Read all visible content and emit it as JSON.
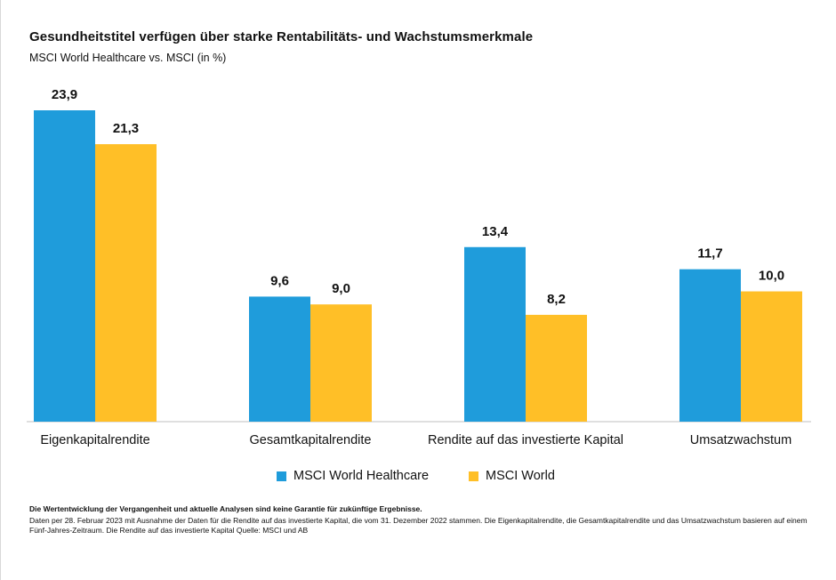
{
  "colors": {
    "healthcare": "#1f9cdb",
    "world": "#ffbf27",
    "axis": "#bfbfbf"
  },
  "title": "Gesundheitstitel verfügen über starke Rentabilitäts- und Wachstumsmerkmale",
  "subtitle": "MSCI World Healthcare vs. MSCI (in %)",
  "footnote": {
    "bold": "Die Wertentwicklung der Vergangenheit und aktuelle Analysen sind keine Garantie für zukünftige Ergebnisse.",
    "text": "Daten per 28. Februar 2023 mit Ausnahme der Daten für die Rendite auf das investierte Kapital, die vom 31. Dezember 2022 stammen. Die Eigenkapitalrendite, die Gesamtkapitalrendite und das Umsatzwachstum basieren auf einem Fünf-Jahres-Zeitraum. Die Rendite auf das investierte Kapital Quelle: MSCI und AB"
  },
  "chart_data": {
    "type": "bar",
    "title": "Gesundheitstitel verfügen über starke Rentabilitäts- und Wachstumsmerkmale",
    "subtitle": "MSCI World Healthcare vs. MSCI (in %)",
    "xlabel": "",
    "ylabel": "",
    "ylim": [
      0,
      23.9
    ],
    "grid": false,
    "legend_position": "bottom",
    "categories": [
      "Eigenkapitalrendite",
      "Gesamtkapitalrendite",
      "Rendite auf das investierte Kapital",
      "Umsatzwachstum"
    ],
    "series": [
      {
        "name": "MSCI World Healthcare",
        "values": [
          23.9,
          9.6,
          13.4,
          11.7
        ],
        "labels": [
          "23,9",
          "9,6",
          "13,4",
          "11,7"
        ]
      },
      {
        "name": "MSCI World",
        "values": [
          21.3,
          9.0,
          8.2,
          10.0
        ],
        "labels": [
          "21,3",
          "9,0",
          "8,2",
          "10,0"
        ]
      }
    ]
  }
}
